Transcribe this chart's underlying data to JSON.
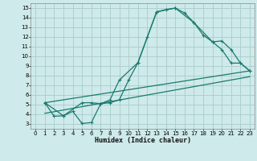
{
  "xlabel": "Humidex (Indice chaleur)",
  "background_color": "#ceeaea",
  "grid_color": "#aacccc",
  "line_color": "#1a7a6e",
  "xlim": [
    -0.5,
    23.5
  ],
  "ylim": [
    2.5,
    15.5
  ],
  "xticks": [
    0,
    1,
    2,
    3,
    4,
    5,
    6,
    7,
    8,
    9,
    10,
    11,
    12,
    13,
    14,
    15,
    16,
    17,
    18,
    19,
    20,
    21,
    22,
    23
  ],
  "yticks": [
    3,
    4,
    5,
    6,
    7,
    8,
    9,
    10,
    11,
    12,
    13,
    14,
    15
  ],
  "line1_x": [
    1,
    2,
    3,
    4,
    5,
    6,
    7,
    8,
    9,
    10,
    11,
    12,
    13,
    14,
    15,
    16,
    17,
    18,
    19,
    20,
    21,
    22,
    23
  ],
  "line1_y": [
    5.2,
    3.8,
    3.85,
    4.3,
    3.05,
    3.15,
    5.1,
    5.2,
    5.5,
    7.55,
    9.35,
    12.0,
    14.6,
    14.85,
    15.0,
    14.5,
    13.5,
    12.2,
    11.5,
    11.6,
    10.7,
    9.3,
    8.5
  ],
  "line2_x": [
    1,
    3,
    5,
    6,
    7,
    8,
    9,
    11,
    13,
    15,
    17,
    19,
    20,
    21,
    22,
    23
  ],
  "line2_y": [
    5.2,
    3.85,
    5.2,
    5.2,
    5.1,
    5.5,
    7.55,
    9.35,
    14.6,
    15.0,
    13.5,
    11.5,
    10.7,
    9.3,
    9.3,
    8.5
  ],
  "line3_x": [
    1,
    23
  ],
  "line3_y": [
    5.2,
    8.5
  ],
  "line4_x": [
    1,
    23
  ],
  "line4_y": [
    4.1,
    7.9
  ]
}
